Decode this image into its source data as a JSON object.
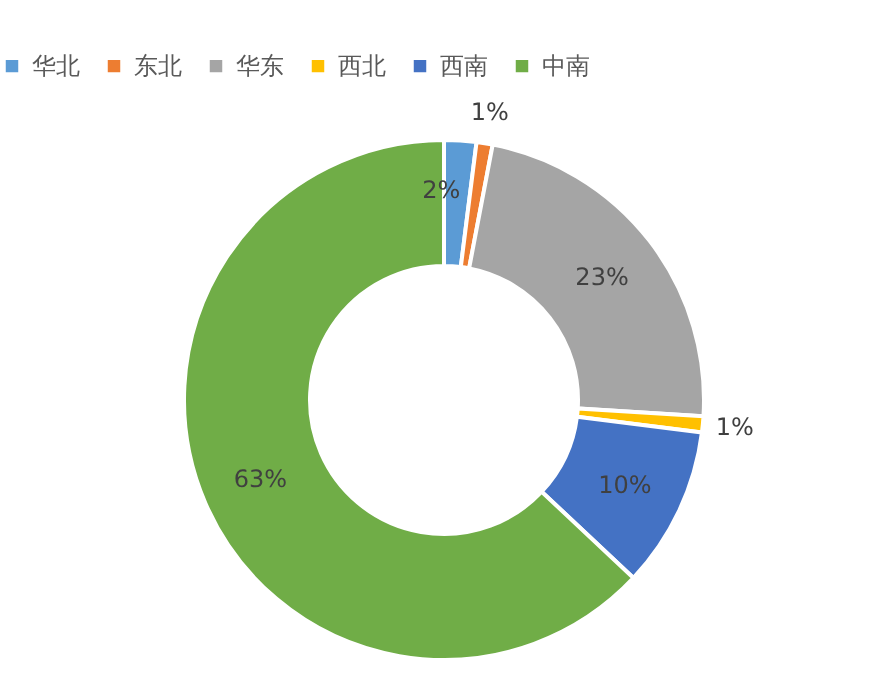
{
  "chart_data": {
    "type": "donut",
    "categories": [
      "华北",
      "东北",
      "华东",
      "西北",
      "西南",
      "中南"
    ],
    "values": [
      2,
      1,
      23,
      1,
      10,
      63
    ],
    "colors": [
      "#5b9bd5",
      "#ed7d31",
      "#a5a5a5",
      "#ffc000",
      "#4472c4",
      "#70ad47"
    ],
    "value_labels": [
      "2%",
      "1%",
      "23%",
      "1%",
      "10%",
      "63%"
    ],
    "legend": "top"
  }
}
